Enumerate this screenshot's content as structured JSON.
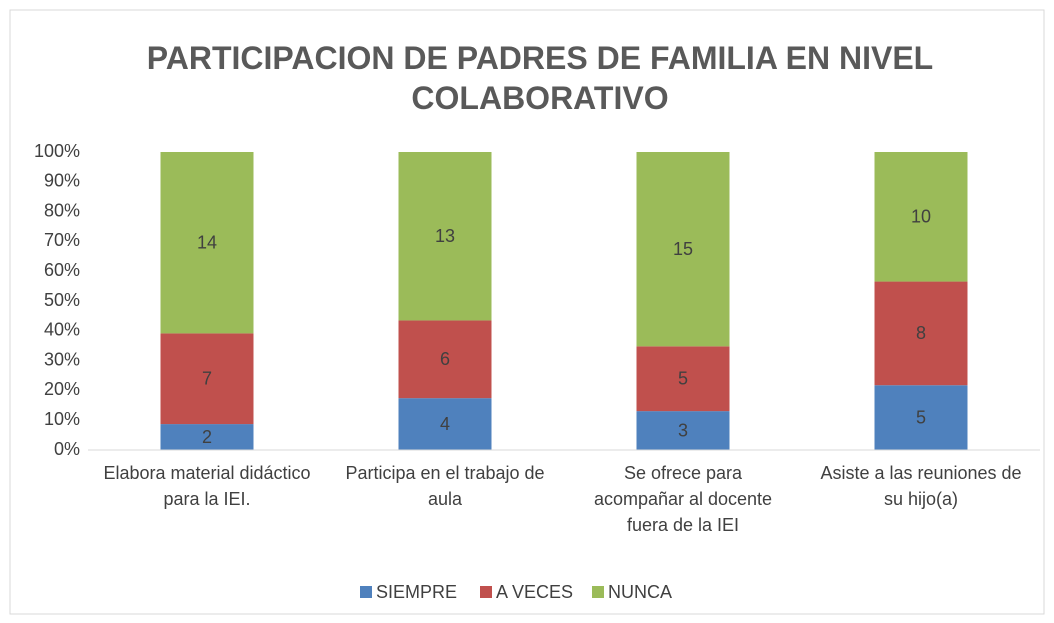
{
  "chart_data": {
    "type": "bar",
    "stacking": "percent",
    "title": "PARTICIPACION DE PADRES DE FAMILIA EN NIVEL COLABORATIVO",
    "categories": [
      "Elabora material didáctico para la IEI.",
      "Participa en el trabajo de aula",
      "Se ofrece para acompañar al docente fuera de la IEI",
      "Asiste a las reuniones de su hijo(a)"
    ],
    "series": [
      {
        "name": "SIEMPRE",
        "color": "#4f81bd",
        "values": [
          2,
          4,
          3,
          5
        ]
      },
      {
        "name": "A VECES",
        "color": "#c0504d",
        "values": [
          7,
          6,
          5,
          8
        ]
      },
      {
        "name": "NUNCA",
        "color": "#9bbb59",
        "values": [
          14,
          13,
          15,
          10
        ]
      }
    ],
    "ylim": [
      0,
      100
    ],
    "yticks": [
      {
        "value": 0,
        "label": "0%"
      },
      {
        "value": 10,
        "label": "10%"
      },
      {
        "value": 20,
        "label": "20%"
      },
      {
        "value": 30,
        "label": "30%"
      },
      {
        "value": 40,
        "label": "40%"
      },
      {
        "value": 50,
        "label": "50%"
      },
      {
        "value": 60,
        "label": "60%"
      },
      {
        "value": 70,
        "label": "70%"
      },
      {
        "value": 80,
        "label": "80%"
      },
      {
        "value": 90,
        "label": "90%"
      },
      {
        "value": 100,
        "label": "100%"
      }
    ],
    "grid": false,
    "legend": "bottom"
  }
}
